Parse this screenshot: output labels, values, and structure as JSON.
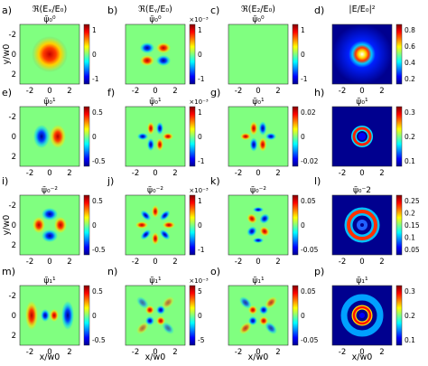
{
  "chart_data": {
    "type": "heatmap",
    "x_axis_label": "x/w",
    "x_axis_sub": "0",
    "y_axis_label": "y/w",
    "y_axis_sub": "0",
    "axis_ticks": [
      -2,
      0,
      2
    ],
    "axis_tick_labels": [
      "-2",
      "0",
      "2"
    ],
    "colormap": "jet",
    "rows": [
      [
        {
          "tag": "a)",
          "title": "ℜ(Eₓ/E₀)",
          "subtitle": "ψ̃₀⁰",
          "cbar_ticks": [
            "1",
            "0",
            "-1"
          ],
          "cbar_exp": "",
          "mode": "gauss"
        },
        {
          "tag": "b)",
          "title": "ℜ(Eᵧ/E₀)",
          "subtitle": "ψ̃₀⁰",
          "cbar_ticks": [
            "1",
            "0",
            "-1"
          ],
          "cbar_exp": "×10⁻³",
          "mode": "quad"
        },
        {
          "tag": "c)",
          "title": "ℜ(E₂/E₀)",
          "subtitle": "ψ̃₀⁰",
          "cbar_ticks": [
            "1",
            "0",
            "-1"
          ],
          "cbar_exp": "",
          "mode": "zero"
        },
        {
          "tag": "d)",
          "title": "|E/E₀|²",
          "subtitle": "",
          "cbar_ticks": [
            "0.8",
            "0.6",
            "0.4",
            "0.2"
          ],
          "cbar_exp": "",
          "mode": "spot"
        }
      ],
      [
        {
          "tag": "e)",
          "title": "",
          "subtitle": "ψ̃₀¹",
          "cbar_ticks": [
            "0.5",
            "0",
            "-0.5"
          ],
          "cbar_exp": "",
          "mode": "dipole"
        },
        {
          "tag": "f)",
          "title": "",
          "subtitle": "ψ̃₀¹",
          "cbar_ticks": [
            "1",
            "0",
            "-1"
          ],
          "cbar_exp": "×10⁻³",
          "mode": "quad2"
        },
        {
          "tag": "g)",
          "title": "",
          "subtitle": "ψ̃₀¹",
          "cbar_ticks": [
            "0.02",
            "0",
            "-0.02"
          ],
          "cbar_exp": "",
          "mode": "quad2b"
        },
        {
          "tag": "h)",
          "title": "",
          "subtitle": "ψ̃₀¹",
          "cbar_ticks": [
            "0.3",
            "0.2",
            "0.1"
          ],
          "cbar_exp": "",
          "mode": "ring1"
        }
      ],
      [
        {
          "tag": "i)",
          "title": "",
          "subtitle": "ψ̃₀⁻²",
          "cbar_ticks": [
            "0.5",
            "0",
            "-0.5"
          ],
          "cbar_exp": "",
          "mode": "quad4"
        },
        {
          "tag": "j)",
          "title": "",
          "subtitle": "ψ̃₀⁻²",
          "cbar_ticks": [
            "1",
            "0",
            "-1"
          ],
          "cbar_exp": "×10⁻³",
          "mode": "hex"
        },
        {
          "tag": "k)",
          "title": "",
          "subtitle": "ψ̃₀⁻²",
          "cbar_ticks": [
            "0.05",
            "0",
            "-0.05"
          ],
          "cbar_exp": "",
          "mode": "quad4s"
        },
        {
          "tag": "l)",
          "title": "",
          "subtitle": "ψ̃₀⁻2",
          "cbar_ticks": [
            "0.25",
            "0.2",
            "0.15",
            "0.1",
            "0.05"
          ],
          "cbar_exp": "",
          "mode": "ring2"
        }
      ],
      [
        {
          "tag": "m)",
          "title": "",
          "subtitle": "ψ̃₁¹",
          "cbar_ticks": [
            "0.5",
            "0",
            "-0.5"
          ],
          "cbar_exp": "",
          "mode": "dipoleR"
        },
        {
          "tag": "n)",
          "title": "",
          "subtitle": "ψ̃₁¹",
          "cbar_ticks": [
            "5",
            "0",
            "-5"
          ],
          "cbar_exp": "×10⁻³",
          "mode": "quadR"
        },
        {
          "tag": "o)",
          "title": "",
          "subtitle": "ψ̃₁¹",
          "cbar_ticks": [
            "0.05",
            "0",
            "-0.05"
          ],
          "cbar_exp": "",
          "mode": "quadR2"
        },
        {
          "tag": "p)",
          "title": "",
          "subtitle": "ψ̃₁¹",
          "cbar_ticks": [
            "0.3",
            "0.2",
            "0.1"
          ],
          "cbar_exp": "",
          "mode": "ring3"
        }
      ]
    ]
  }
}
